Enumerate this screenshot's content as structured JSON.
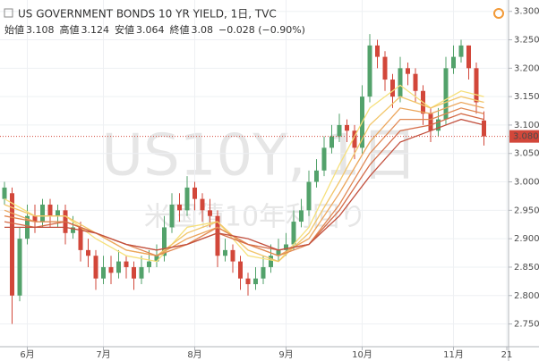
{
  "chart_data": {
    "type": "candlestick",
    "title": "US GOVERNMENT BONDS 10 YR YIELD, 1日, TVC",
    "header": {
      "labels": [
        "始値",
        "高値",
        "安値",
        "終値"
      ],
      "values": [
        3.108,
        3.124,
        3.064,
        3.08
      ],
      "change": "−0.028 (−0.90%)"
    },
    "watermark": [
      "US10Y, 1日",
      "米国債10年利回り"
    ],
    "categories": [
      null,
      null,
      null,
      "6月",
      null,
      null,
      null,
      null,
      null,
      null,
      null,
      null,
      null,
      "7月",
      null,
      null,
      null,
      null,
      null,
      null,
      null,
      null,
      null,
      null,
      null,
      "8月",
      null,
      null,
      null,
      null,
      null,
      null,
      null,
      null,
      null,
      null,
      null,
      "9月",
      null,
      null,
      null,
      null,
      null,
      null,
      null,
      null,
      null,
      "10月",
      null,
      null,
      null,
      null,
      null,
      null,
      null,
      null,
      null,
      null,
      null,
      "11月",
      null,
      null,
      null,
      null,
      null,
      null,
      "21"
    ],
    "ohlc": [
      [
        2.97,
        3.0,
        2.96,
        2.99
      ],
      [
        2.98,
        2.99,
        2.75,
        2.8
      ],
      [
        2.8,
        2.92,
        2.79,
        2.9
      ],
      [
        2.9,
        2.96,
        2.89,
        2.94
      ],
      [
        2.94,
        2.96,
        2.91,
        2.93
      ],
      [
        2.93,
        2.97,
        2.92,
        2.96
      ],
      [
        2.96,
        2.97,
        2.92,
        2.94
      ],
      [
        2.94,
        2.96,
        2.92,
        2.95
      ],
      [
        2.95,
        2.96,
        2.89,
        2.91
      ],
      [
        2.91,
        2.94,
        2.9,
        2.92
      ],
      [
        2.92,
        2.93,
        2.86,
        2.88
      ],
      [
        2.88,
        2.9,
        2.85,
        2.87
      ],
      [
        2.87,
        2.88,
        2.81,
        2.83
      ],
      [
        2.83,
        2.87,
        2.82,
        2.85
      ],
      [
        2.85,
        2.87,
        2.82,
        2.84
      ],
      [
        2.84,
        2.88,
        2.83,
        2.86
      ],
      [
        2.86,
        2.87,
        2.83,
        2.85
      ],
      [
        2.85,
        2.86,
        2.81,
        2.83
      ],
      [
        2.83,
        2.87,
        2.82,
        2.85
      ],
      [
        2.85,
        2.88,
        2.84,
        2.86
      ],
      [
        2.86,
        2.89,
        2.85,
        2.87
      ],
      [
        2.87,
        2.94,
        2.86,
        2.92
      ],
      [
        2.92,
        2.98,
        2.91,
        2.96
      ],
      [
        2.96,
        2.98,
        2.93,
        2.95
      ],
      [
        2.95,
        3.01,
        2.94,
        2.99
      ],
      [
        2.99,
        3.0,
        2.95,
        2.97
      ],
      [
        2.97,
        2.98,
        2.93,
        2.95
      ],
      [
        2.95,
        2.97,
        2.92,
        2.94
      ],
      [
        2.94,
        2.95,
        2.85,
        2.87
      ],
      [
        2.87,
        2.9,
        2.86,
        2.88
      ],
      [
        2.88,
        2.89,
        2.84,
        2.86
      ],
      [
        2.86,
        2.87,
        2.81,
        2.83
      ],
      [
        2.83,
        2.84,
        2.8,
        2.82
      ],
      [
        2.82,
        2.85,
        2.81,
        2.83
      ],
      [
        2.83,
        2.87,
        2.82,
        2.85
      ],
      [
        2.85,
        2.89,
        2.84,
        2.87
      ],
      [
        2.87,
        2.9,
        2.86,
        2.88
      ],
      [
        2.88,
        2.91,
        2.87,
        2.89
      ],
      [
        2.89,
        2.95,
        2.88,
        2.93
      ],
      [
        2.93,
        2.97,
        2.92,
        2.95
      ],
      [
        2.95,
        3.02,
        2.94,
        3.0
      ],
      [
        3.0,
        3.04,
        2.99,
        3.02
      ],
      [
        3.02,
        3.08,
        3.01,
        3.06
      ],
      [
        3.06,
        3.1,
        3.05,
        3.08
      ],
      [
        3.08,
        3.12,
        3.07,
        3.1
      ],
      [
        3.1,
        3.11,
        3.07,
        3.09
      ],
      [
        3.09,
        3.1,
        3.04,
        3.06
      ],
      [
        3.06,
        3.17,
        3.05,
        3.15
      ],
      [
        3.15,
        3.26,
        3.14,
        3.24
      ],
      [
        3.24,
        3.25,
        3.2,
        3.22
      ],
      [
        3.22,
        3.23,
        3.16,
        3.18
      ],
      [
        3.18,
        3.19,
        3.13,
        3.15
      ],
      [
        3.15,
        3.22,
        3.14,
        3.2
      ],
      [
        3.2,
        3.21,
        3.17,
        3.19
      ],
      [
        3.19,
        3.2,
        3.14,
        3.16
      ],
      [
        3.16,
        3.17,
        3.1,
        3.12
      ],
      [
        3.12,
        3.13,
        3.07,
        3.09
      ],
      [
        3.09,
        3.13,
        3.08,
        3.11
      ],
      [
        3.11,
        3.22,
        3.1,
        3.2
      ],
      [
        3.2,
        3.24,
        3.19,
        3.22
      ],
      [
        3.22,
        3.25,
        3.21,
        3.24
      ],
      [
        3.24,
        3.24,
        3.18,
        3.2
      ],
      [
        3.2,
        3.21,
        3.12,
        3.14
      ],
      [
        3.108,
        3.124,
        3.064,
        3.08
      ],
      null,
      null,
      null
    ],
    "up_color": "#53a26b",
    "down_color": "#d2473a",
    "ma_x": [
      0,
      4,
      8,
      12,
      16,
      20,
      24,
      28,
      32,
      36,
      40,
      44,
      48,
      52,
      56,
      60,
      63
    ],
    "ma_lines": [
      {
        "color": "#f6e07a",
        "values": [
          2.97,
          2.94,
          2.94,
          2.9,
          2.87,
          2.86,
          2.92,
          2.93,
          2.87,
          2.86,
          2.92,
          3.03,
          3.13,
          3.17,
          3.13,
          3.16,
          3.15
        ]
      },
      {
        "color": "#f2c66a",
        "values": [
          2.96,
          2.94,
          2.94,
          2.91,
          2.88,
          2.87,
          2.91,
          2.93,
          2.88,
          2.86,
          2.91,
          3.0,
          3.1,
          3.15,
          3.13,
          3.15,
          3.14
        ]
      },
      {
        "color": "#eca65c",
        "values": [
          2.95,
          2.93,
          2.93,
          2.91,
          2.88,
          2.87,
          2.9,
          2.92,
          2.89,
          2.87,
          2.9,
          2.98,
          3.07,
          3.13,
          3.12,
          3.14,
          3.13
        ]
      },
      {
        "color": "#e18852",
        "values": [
          2.94,
          2.93,
          2.93,
          2.91,
          2.89,
          2.87,
          2.89,
          2.92,
          2.89,
          2.87,
          2.89,
          2.96,
          3.05,
          3.11,
          3.11,
          3.13,
          3.12
        ]
      },
      {
        "color": "#d46b47",
        "values": [
          2.93,
          2.92,
          2.93,
          2.91,
          2.89,
          2.88,
          2.89,
          2.91,
          2.89,
          2.88,
          2.89,
          2.95,
          3.03,
          3.09,
          3.1,
          3.12,
          3.11
        ]
      },
      {
        "color": "#c2503e",
        "values": [
          2.92,
          2.92,
          2.92,
          2.91,
          2.89,
          2.88,
          2.89,
          2.91,
          2.9,
          2.88,
          2.89,
          2.94,
          3.01,
          3.07,
          3.09,
          3.11,
          3.1
        ]
      }
    ],
    "last_price": {
      "value": 3.08,
      "label": "3.080"
    },
    "ylim": [
      2.71,
      3.32
    ],
    "yticks": [
      {
        "value": 2.75,
        "label": "2.750"
      },
      {
        "value": 2.8,
        "label": "2.800"
      },
      {
        "value": 2.85,
        "label": "2.850"
      },
      {
        "value": 2.9,
        "label": "2.900"
      },
      {
        "value": 2.95,
        "label": "2.950"
      },
      {
        "value": 3.0,
        "label": "3.000"
      },
      {
        "value": 3.05,
        "label": "3.050"
      },
      {
        "value": 3.1,
        "label": "3.100"
      },
      {
        "value": 3.15,
        "label": "3.150"
      },
      {
        "value": 3.2,
        "label": "3.200"
      },
      {
        "value": 3.25,
        "label": "3.250"
      },
      {
        "value": 3.3,
        "label": "3.300"
      }
    ],
    "grid": true
  }
}
